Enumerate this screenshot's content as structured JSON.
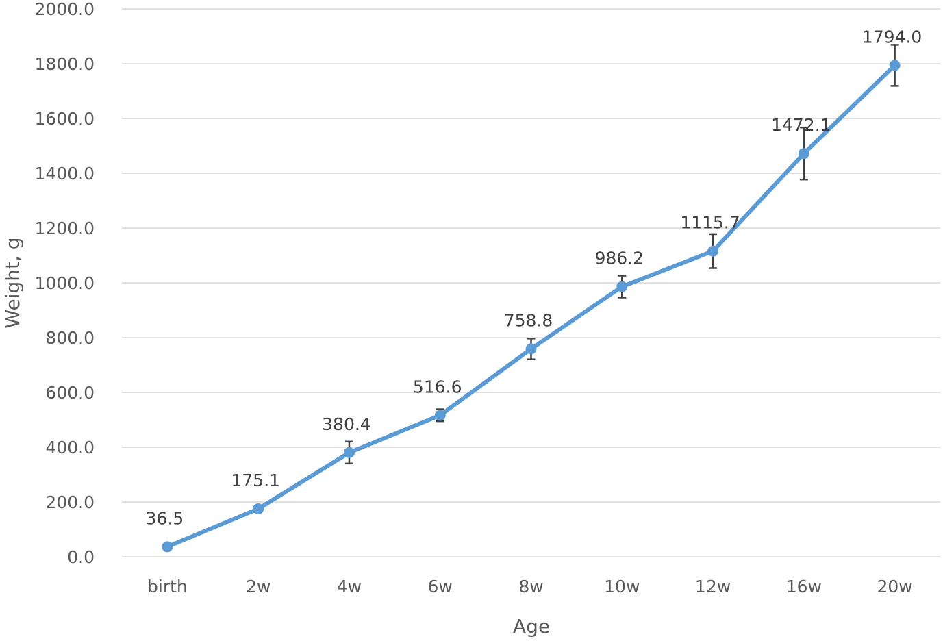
{
  "chart_data": {
    "type": "line",
    "categories": [
      "birth",
      "2w",
      "4w",
      "6w",
      "8w",
      "10w",
      "12w",
      "16w",
      "20w"
    ],
    "values": [
      36.5,
      175.1,
      380.4,
      516.6,
      758.8,
      986.2,
      1115.7,
      1472.1,
      1794.0
    ],
    "value_labels": [
      "36.5",
      "175.1",
      "380.4",
      "516.6",
      "758.8",
      "986.2",
      "1115.7",
      "1472.1",
      "1794.0"
    ],
    "error": [
      5,
      12,
      40,
      22,
      38,
      40,
      62,
      95,
      75
    ],
    "xlabel": "Age",
    "ylabel": "Weight, g",
    "ylim": [
      0,
      2000
    ],
    "yticks": [
      "0.0",
      "200.0",
      "400.0",
      "600.0",
      "800.0",
      "1000.0",
      "1200.0",
      "1400.0",
      "1600.0",
      "1800.0",
      "2000.0"
    ],
    "grid": true,
    "legend": "none",
    "colors": {
      "line": "#5b9bd5",
      "error_bar": "#404040",
      "grid": "#d9d9d9",
      "text": "#595959"
    }
  }
}
